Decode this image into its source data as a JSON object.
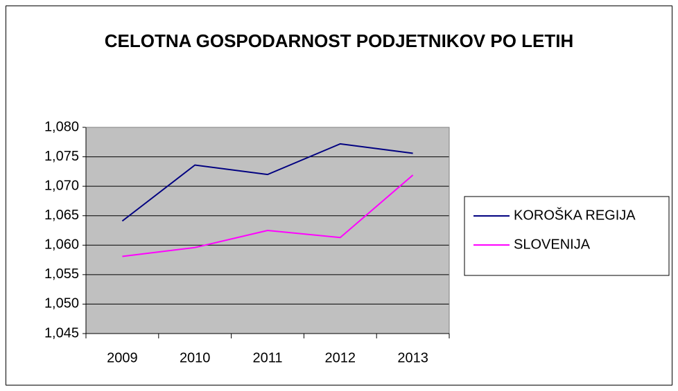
{
  "chart_data": {
    "type": "line",
    "title": "CELOTNA GOSPODARNOST PODJETNIKOV PO LETIH",
    "categories": [
      "2009",
      "2010",
      "2011",
      "2012",
      "2013"
    ],
    "series": [
      {
        "name": "KOROŠKA REGIJA",
        "color": "#000080",
        "values": [
          1.0641,
          1.0736,
          1.072,
          1.0772,
          1.0756
        ]
      },
      {
        "name": "SLOVENIJA",
        "color": "#ff00ff",
        "values": [
          1.0581,
          1.0596,
          1.0625,
          1.0613,
          1.0719
        ]
      }
    ],
    "ylim": [
      1.045,
      1.08
    ],
    "yticks": [
      {
        "value": 1.045,
        "label": "1,045"
      },
      {
        "value": 1.05,
        "label": "1,050"
      },
      {
        "value": 1.055,
        "label": "1,055"
      },
      {
        "value": 1.06,
        "label": "1,060"
      },
      {
        "value": 1.065,
        "label": "1,065"
      },
      {
        "value": 1.07,
        "label": "1,070"
      },
      {
        "value": 1.075,
        "label": "1,075"
      },
      {
        "value": 1.08,
        "label": "1,080"
      }
    ],
    "grid": true,
    "plot_background": "#c0c0c0",
    "legend": "right"
  }
}
